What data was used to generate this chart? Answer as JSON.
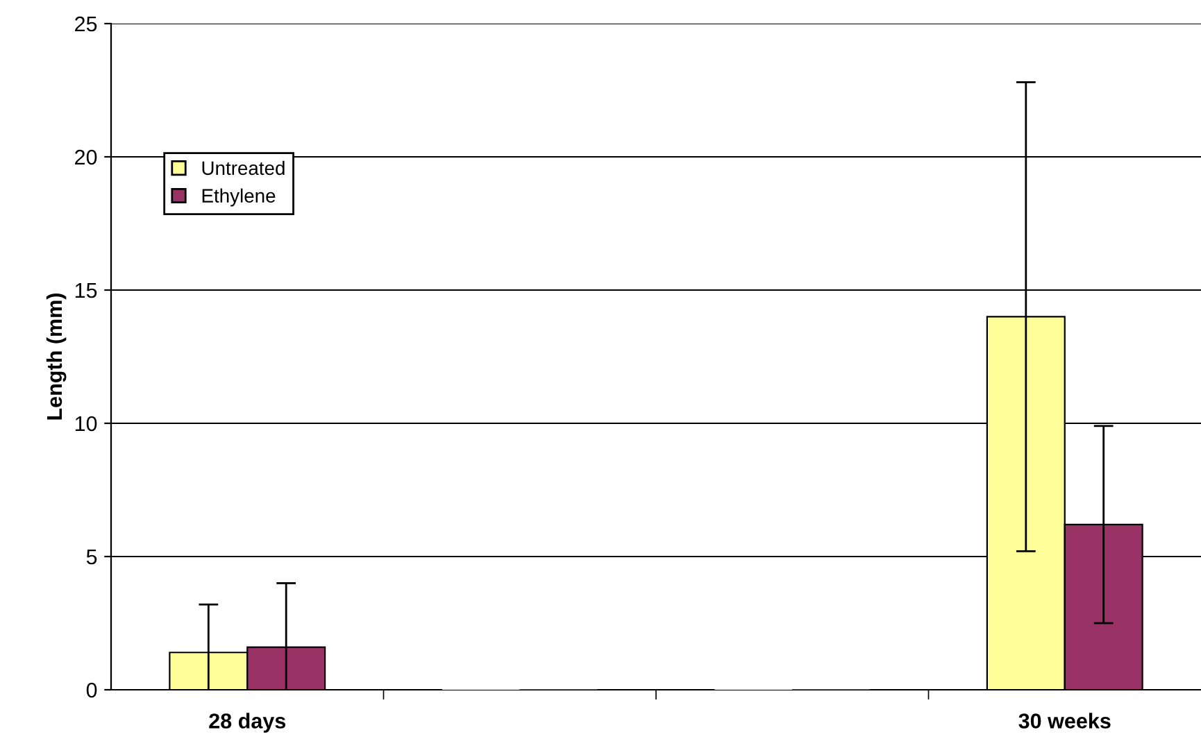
{
  "chart_data": {
    "type": "bar",
    "ylabel": "Length (mm)",
    "categories": [
      "28 days",
      null,
      null,
      "30 weeks"
    ],
    "series": [
      {
        "name": "Untreated",
        "color": "#ffff99",
        "values": [
          1.4,
          0,
          0,
          14.0
        ],
        "errors": [
          1.8,
          null,
          null,
          8.8
        ]
      },
      {
        "name": "Ethylene",
        "color": "#993366",
        "values": [
          1.6,
          0,
          0,
          6.2
        ],
        "errors": [
          2.4,
          null,
          null,
          3.7
        ]
      }
    ],
    "ylim": [
      0,
      25
    ],
    "yticks": [
      0,
      5,
      10,
      15,
      20,
      25
    ],
    "grid": "y",
    "legend": "top left"
  }
}
